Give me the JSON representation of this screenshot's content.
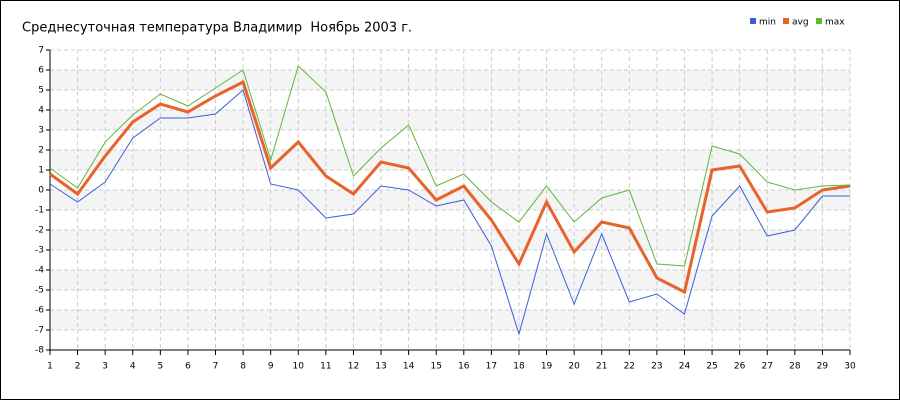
{
  "chart_data": {
    "type": "line",
    "title": "Среднесуточная температура Владимир  Ноябрь 2003 г.",
    "x": [
      1,
      2,
      3,
      4,
      5,
      6,
      7,
      8,
      9,
      10,
      11,
      12,
      13,
      14,
      15,
      16,
      17,
      18,
      19,
      20,
      21,
      22,
      23,
      24,
      25,
      26,
      27,
      28,
      29,
      30
    ],
    "series": [
      {
        "name": "min",
        "color": "#3a5fd9",
        "values": [
          0.3,
          -0.6,
          0.4,
          2.6,
          3.6,
          3.6,
          3.8,
          5.0,
          0.3,
          0.0,
          -1.4,
          -1.2,
          0.2,
          0.0,
          -0.8,
          -0.5,
          -2.8,
          -7.2,
          -2.2,
          -5.7,
          -2.2,
          -5.6,
          -5.2,
          -6.2,
          -1.3,
          0.2,
          -2.3,
          -2.0,
          -0.3,
          -0.3
        ]
      },
      {
        "name": "avg",
        "color": "#e8622c",
        "values": [
          0.8,
          -0.2,
          1.7,
          3.4,
          4.3,
          3.9,
          4.7,
          5.4,
          1.1,
          2.4,
          0.7,
          -0.2,
          1.4,
          1.1,
          -0.5,
          0.2,
          -1.5,
          -3.7,
          -0.6,
          -3.1,
          -1.6,
          -1.9,
          -4.4,
          -5.1,
          1.0,
          1.2,
          -1.1,
          -0.9,
          0.0,
          0.2
        ]
      },
      {
        "name": "max",
        "color": "#5cb83a",
        "values": [
          1.1,
          0.1,
          2.4,
          3.75,
          4.8,
          4.2,
          5.1,
          6.0,
          1.5,
          6.2,
          4.9,
          0.7,
          2.1,
          3.25,
          0.2,
          0.8,
          -0.6,
          -1.6,
          0.2,
          -1.6,
          -0.4,
          0.0,
          -3.7,
          -3.8,
          2.2,
          1.8,
          0.4,
          0.0,
          0.2,
          0.25
        ]
      }
    ],
    "xlim": [
      1,
      30
    ],
    "xticks": [
      1,
      2,
      3,
      4,
      5,
      6,
      7,
      8,
      9,
      10,
      11,
      12,
      13,
      14,
      15,
      16,
      17,
      18,
      19,
      20,
      21,
      22,
      23,
      24,
      25,
      26,
      27,
      28,
      29,
      30
    ],
    "ylim": [
      -8,
      7
    ],
    "yticks": [
      -8,
      -7,
      -6,
      -5,
      -4,
      -3,
      -2,
      -1,
      0,
      1,
      2,
      3,
      4,
      5,
      6,
      7
    ],
    "grid": true,
    "legend": "top-right"
  }
}
